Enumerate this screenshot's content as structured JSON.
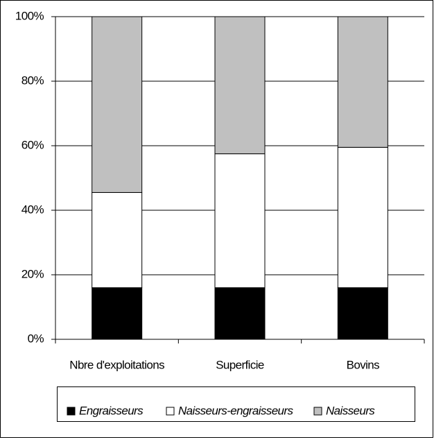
{
  "chart_data": {
    "type": "stacked_bar",
    "categories": [
      "Nbre d'exploitations",
      "Superficie",
      "Bovins"
    ],
    "series": [
      {
        "name": "Engraisseurs",
        "color": "#000000",
        "values": [
          16,
          16,
          16
        ]
      },
      {
        "name": "Naisseurs-engraisseurs",
        "color": "#ffffff",
        "values": [
          29.5,
          41.5,
          43.5
        ]
      },
      {
        "name": "Naisseurs",
        "color": "#c0c0c0",
        "values": [
          54.5,
          42.5,
          40.5
        ]
      }
    ],
    "ylim": [
      0,
      100
    ],
    "yticks": [
      {
        "value": 0,
        "label": "0%"
      },
      {
        "value": 20,
        "label": "20%"
      },
      {
        "value": 40,
        "label": "40%"
      },
      {
        "value": 60,
        "label": "60%"
      },
      {
        "value": 80,
        "label": "80%"
      },
      {
        "value": 100,
        "label": "100%"
      }
    ],
    "grid": true,
    "legend": "bottom"
  }
}
